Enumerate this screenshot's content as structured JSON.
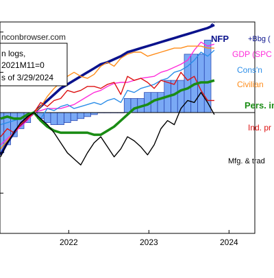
{
  "chart_data": {
    "type": "line",
    "source_text": "nconbrowser.com",
    "notes": [
      "n logs,",
      "2021M11=0",
      "s of 3/29/2024"
    ],
    "x_ticks": [
      "2022",
      "2023",
      "2024"
    ],
    "months": [
      "2021-06",
      "2021-07",
      "2021-08",
      "2021-09",
      "2021-10",
      "2021-11",
      "2021-12",
      "2022-01",
      "2022-02",
      "2022-03",
      "2022-04",
      "2022-05",
      "2022-06",
      "2022-07",
      "2022-08",
      "2022-09",
      "2022-10",
      "2022-11",
      "2022-12",
      "2023-01",
      "2023-02",
      "2023-03",
      "2023-04",
      "2023-05",
      "2023-06",
      "2023-07",
      "2023-08",
      "2023-09",
      "2023-10",
      "2023-11",
      "2023-12",
      "2024-01",
      "2024-02"
    ],
    "ylim": [
      -6,
      4.5
    ],
    "series": [
      {
        "name": "NFP",
        "color": "#0a128c",
        "values": [
          -2.1,
          -1.5,
          -1.0,
          -0.6,
          -0.3,
          0.0,
          0.3,
          0.6,
          0.9,
          1.2,
          1.4,
          1.6,
          1.8,
          2.0,
          2.2,
          2.4,
          2.5,
          2.65,
          2.8,
          3.0,
          3.1,
          3.2,
          3.3,
          3.4,
          3.5,
          3.6,
          3.7,
          3.8,
          3.9,
          4.0,
          4.1,
          4.2,
          4.35
        ]
      },
      {
        "name": "+Bbg (",
        "color": "#0a128c",
        "dashed": true,
        "values": [
          null,
          null,
          null,
          null,
          null,
          null,
          null,
          null,
          null,
          null,
          null,
          null,
          null,
          null,
          null,
          null,
          null,
          null,
          null,
          null,
          null,
          null,
          null,
          null,
          null,
          null,
          null,
          null,
          null,
          null,
          null,
          4.2,
          4.5
        ]
      },
      {
        "name": "GDP (SPC",
        "color": "#ff2bd9",
        "values": [
          -1.6,
          -1.3,
          -1.0,
          -0.7,
          -0.4,
          0.0,
          0.1,
          0.2,
          0.2,
          0.2,
          0.3,
          0.4,
          0.6,
          0.8,
          1.0,
          1.1,
          1.3,
          1.45,
          1.5,
          1.5,
          1.6,
          1.7,
          1.75,
          1.8,
          2.0,
          2.1,
          2.25,
          2.4,
          2.6,
          3.1,
          3.5,
          3.3,
          3.4
        ]
      },
      {
        "name": "Cons'n",
        "color": "#2a8de8",
        "values": [
          -0.6,
          -0.5,
          -0.4,
          -0.3,
          -0.1,
          0.0,
          -0.3,
          0.2,
          0.1,
          0.3,
          0.4,
          0.2,
          0.3,
          0.4,
          0.5,
          0.4,
          0.6,
          0.7,
          0.5,
          1.1,
          1.0,
          1.2,
          1.3,
          1.4,
          1.6,
          1.7,
          2.0,
          2.1,
          2.3,
          2.6,
          3.0,
          2.8,
          3.1
        ]
      },
      {
        "name": "Civilian",
        "color": "#ff8c19",
        "values": [
          -1.8,
          -1.4,
          -1.0,
          -0.6,
          -0.3,
          0.0,
          0.3,
          0.8,
          1.2,
          1.5,
          1.8,
          2.0,
          1.8,
          1.7,
          1.9,
          2.3,
          2.5,
          2.3,
          2.7,
          2.9,
          3.0,
          3.0,
          2.8,
          2.9,
          3.0,
          3.1,
          3.2,
          3.2,
          3.3,
          3.3,
          3.3,
          3.2,
          3.2
        ]
      },
      {
        "name": "Ind. pr",
        "color": "#dd1111",
        "values": [
          -1.2,
          -0.8,
          -1.0,
          -0.6,
          -0.3,
          0.0,
          0.5,
          0.3,
          0.6,
          0.7,
          1.1,
          1.0,
          1.1,
          1.3,
          1.3,
          1.2,
          1.4,
          1.5,
          0.9,
          1.8,
          1.6,
          1.7,
          1.5,
          1.2,
          1.6,
          1.5,
          1.4,
          2.0,
          1.6,
          1.8,
          1.1,
          0.6,
          0.6
        ]
      },
      {
        "name": "Pers. in",
        "color": "#1a8c14",
        "values": [
          -0.3,
          -0.2,
          -0.3,
          -0.3,
          -0.1,
          0.0,
          -0.4,
          -0.7,
          -0.9,
          -1.0,
          -1.0,
          -1.0,
          -1.0,
          -1.0,
          -1.1,
          -1.1,
          -0.9,
          -0.7,
          -0.4,
          -0.1,
          0.2,
          0.3,
          0.4,
          0.6,
          0.7,
          0.8,
          0.9,
          1.1,
          1.2,
          1.4,
          1.5,
          1.5,
          1.6
        ]
      },
      {
        "name": "Mfg. & trad",
        "color": "#000000",
        "values": [
          -2.2,
          -1.5,
          -1.0,
          -0.5,
          -0.2,
          0.0,
          -0.3,
          -0.6,
          -1.0,
          -1.5,
          -2.0,
          -2.3,
          -2.6,
          -2.0,
          -1.5,
          -1.2,
          -1.7,
          -2.2,
          -1.8,
          -1.2,
          -1.4,
          -1.7,
          -2.1,
          -1.6,
          -0.8,
          -0.4,
          -0.6,
          0.2,
          0.6,
          0.5,
          1.0,
          0.5,
          -0.1
        ]
      },
      {
        "name": "bars",
        "type": "bar",
        "color": "#7aa9f5",
        "values": [
          -2.0,
          -1.6,
          -1.2,
          -0.8,
          -0.5,
          0.0,
          -0.3,
          -0.5,
          -0.6,
          -0.6,
          -0.5,
          -0.4,
          -0.3,
          -0.2,
          -0.1,
          0.0,
          0.0,
          0.0,
          0.0,
          0.7,
          0.7,
          0.7,
          1.0,
          1.0,
          1.0,
          1.6,
          1.6,
          1.6,
          2.9,
          2.9,
          2.9,
          3.6,
          null
        ]
      }
    ]
  }
}
